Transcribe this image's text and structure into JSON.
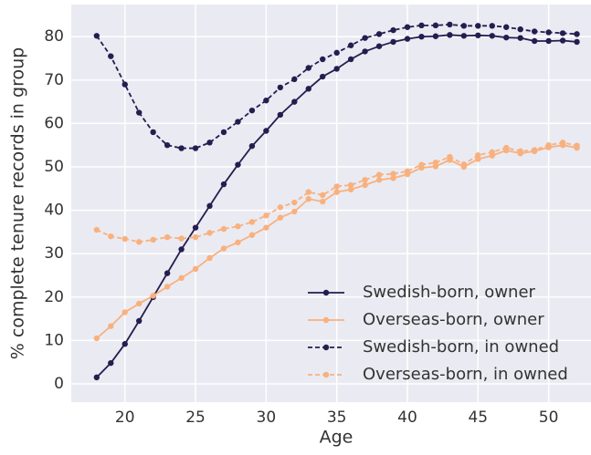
{
  "chart_data": {
    "type": "line",
    "x_label": "Age",
    "y_label": "% complete tenure records in group",
    "x": [
      18,
      19,
      20,
      21,
      22,
      23,
      24,
      25,
      26,
      27,
      28,
      29,
      30,
      31,
      32,
      33,
      34,
      35,
      36,
      37,
      38,
      39,
      40,
      41,
      42,
      43,
      44,
      45,
      46,
      47,
      48,
      49,
      50,
      51,
      52
    ],
    "series": [
      {
        "name": "Swedish-born, owner",
        "color": "#251d4f",
        "linestyle": "solid",
        "values": [
          1.5,
          4.8,
          9.2,
          14.5,
          20,
          25.5,
          31,
          36,
          41,
          46,
          50.5,
          54.8,
          58.3,
          62,
          65,
          68,
          70.8,
          72.6,
          74.8,
          76.6,
          77.8,
          78.8,
          79.5,
          80,
          80.1,
          80.4,
          80.2,
          80.3,
          80.2,
          79.8,
          79.7,
          79,
          79,
          79.1,
          78.8
        ]
      },
      {
        "name": "Overseas-born, owner",
        "color": "#f8b17e",
        "linestyle": "solid",
        "values": [
          10.5,
          13.3,
          16.5,
          18.5,
          20.3,
          22.4,
          24.4,
          26.5,
          29,
          31.2,
          32.6,
          34.3,
          36,
          38.3,
          39.7,
          42.6,
          42,
          44.2,
          44.8,
          45.8,
          47,
          47.4,
          48.3,
          49.8,
          50.1,
          51.6,
          50,
          51.8,
          52.6,
          53.8,
          53.1,
          53.6,
          54.5,
          55,
          54.4
        ]
      },
      {
        "name": "Swedish-born, in owned",
        "color": "#251d4f",
        "linestyle": "dashed",
        "values": [
          80.2,
          75.5,
          69,
          62.5,
          58,
          55,
          54.3,
          54.3,
          55.6,
          58,
          60.4,
          63,
          65.3,
          68.3,
          70.2,
          72.8,
          74.8,
          76.3,
          78,
          79.7,
          80.6,
          81.5,
          82.2,
          82.6,
          82.6,
          82.8,
          82.5,
          82.5,
          82.5,
          82.2,
          81.7,
          81.2,
          81,
          80.8,
          80.6
        ]
      },
      {
        "name": "Overseas-born, in owned",
        "color": "#f8b17e",
        "linestyle": "dashed",
        "values": [
          35.5,
          34,
          33.4,
          32.7,
          33.2,
          33.8,
          33.5,
          33.8,
          34.8,
          35.7,
          36.3,
          37.3,
          38.8,
          40.7,
          41.8,
          44.2,
          43.5,
          45.5,
          45.8,
          47,
          48.2,
          48.4,
          49,
          50.5,
          51,
          52.3,
          50.6,
          52.7,
          53.4,
          54.4,
          53.6,
          53.9,
          55,
          55.6,
          54.9
        ]
      }
    ],
    "xlim": [
      16.2,
      53.0
    ],
    "ylim": [
      -4.2,
      87.4
    ],
    "xticks": [
      20,
      25,
      30,
      35,
      40,
      45,
      50
    ],
    "yticks": [
      0,
      10,
      20,
      30,
      40,
      50,
      60,
      70,
      80
    ],
    "grid": true,
    "legend": "lower right"
  }
}
